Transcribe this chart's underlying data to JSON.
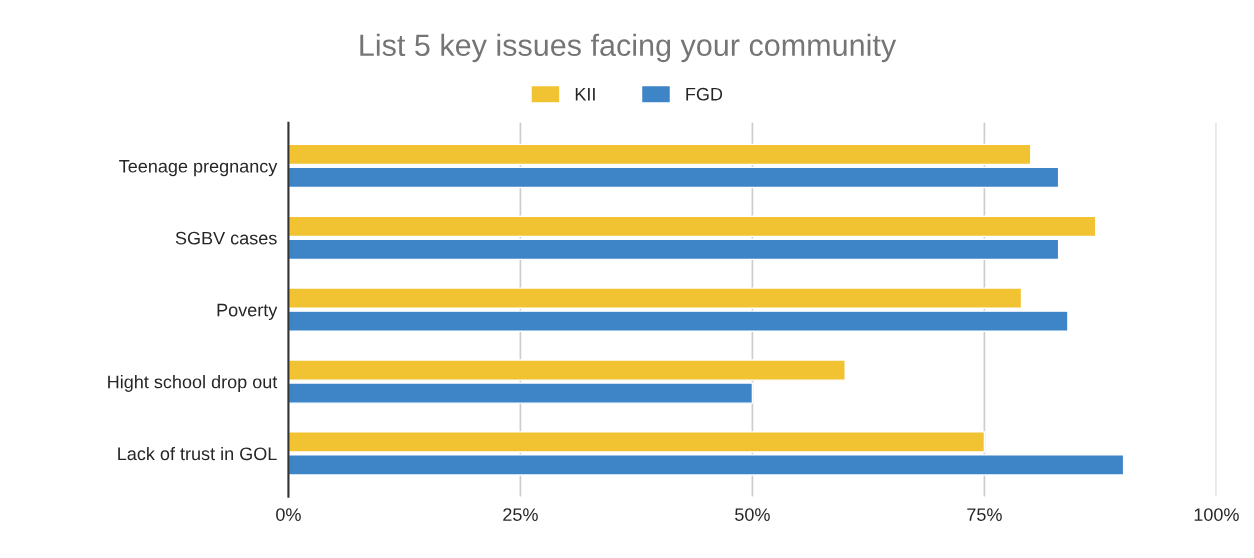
{
  "chart_data": {
    "type": "bar",
    "orientation": "horizontal",
    "title": "List 5 key issues facing your community",
    "categories": [
      "Teenage pregnancy",
      "SGBV cases",
      "Poverty",
      "Hight school drop out",
      "Lack of trust in GOL"
    ],
    "series": [
      {
        "name": "KII",
        "color": "#f1c232",
        "values": [
          80,
          87,
          79,
          60,
          75
        ]
      },
      {
        "name": "FGD",
        "color": "#3d85c6",
        "values": [
          83,
          83,
          84,
          50,
          90
        ]
      }
    ],
    "xlim": [
      0,
      100
    ],
    "xticks": [
      {
        "value": 0,
        "label": "0%"
      },
      {
        "value": 25,
        "label": "25%"
      },
      {
        "value": 50,
        "label": "50%"
      },
      {
        "value": 75,
        "label": "75%"
      },
      {
        "value": 100,
        "label": "100%"
      }
    ],
    "grid": "x",
    "legend": "top"
  }
}
